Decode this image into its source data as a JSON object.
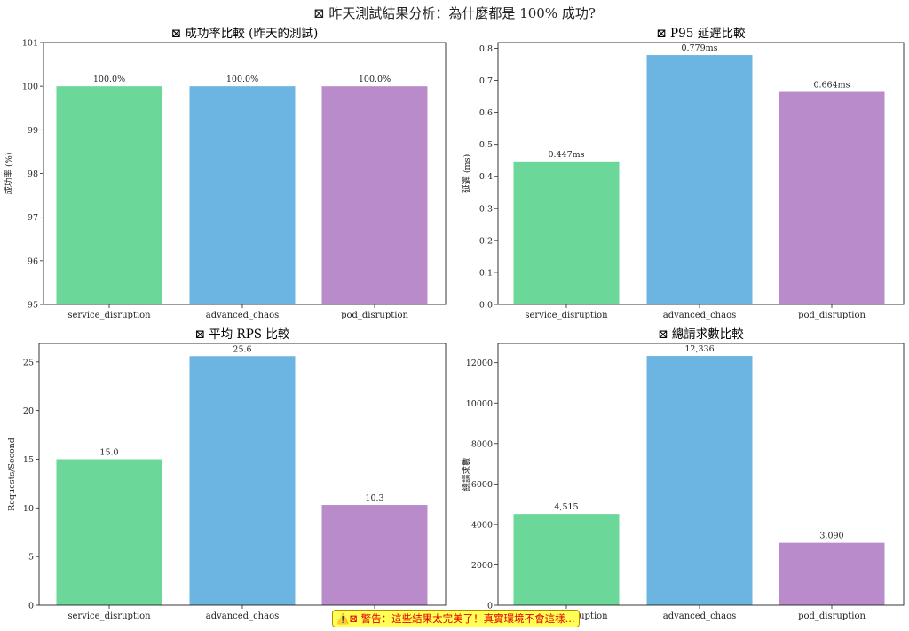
{
  "suptitle": "⊠ 昨天測試結果分析：為什麼都是 100% 成功?",
  "warning": "⚠️⊠ 警告：這些結果太完美了！真實環境不會這樣...",
  "colors": [
    "#6bd899",
    "#6cb4e2",
    "#b98bcb"
  ],
  "chart_data": [
    {
      "type": "bar",
      "title": "⊠ 成功率比較 (昨天的測試)",
      "categories": [
        "service_disruption",
        "advanced_chaos",
        "pod_disruption"
      ],
      "values": [
        100.0,
        100.0,
        100.0
      ],
      "value_labels": [
        "100.0%",
        "100.0%",
        "100.0%"
      ],
      "ylabel": "成功率 (%)",
      "xlabel": "",
      "ylim": [
        95,
        101
      ],
      "yticks": [
        95,
        96,
        97,
        98,
        99,
        100,
        101
      ],
      "ytick_labels": [
        "95",
        "96",
        "97",
        "98",
        "99",
        "100",
        "101"
      ],
      "grid": false
    },
    {
      "type": "bar",
      "title": "⊠ P95 延遲比較",
      "categories": [
        "service_disruption",
        "advanced_chaos",
        "pod_disruption"
      ],
      "values": [
        0.447,
        0.779,
        0.664
      ],
      "value_labels": [
        "0.447ms",
        "0.779ms",
        "0.664ms"
      ],
      "ylabel": "延遲 (ms)",
      "xlabel": "",
      "ylim": [
        0,
        0.818
      ],
      "yticks": [
        0,
        0.1,
        0.2,
        0.3,
        0.4,
        0.5,
        0.6,
        0.7,
        0.8
      ],
      "ytick_labels": [
        "0.0",
        "0.1",
        "0.2",
        "0.3",
        "0.4",
        "0.5",
        "0.6",
        "0.7",
        "0.8"
      ],
      "grid": false
    },
    {
      "type": "bar",
      "title": "⊠ 平均 RPS 比較",
      "categories": [
        "service_disruption",
        "advanced_chaos",
        "pod_disruption"
      ],
      "values": [
        15.0,
        25.6,
        10.3
      ],
      "value_labels": [
        "15.0",
        "25.6",
        "10.3"
      ],
      "ylabel": "Requests/Second",
      "xlabel": "",
      "ylim": [
        0,
        26.9
      ],
      "yticks": [
        0,
        5,
        10,
        15,
        20,
        25
      ],
      "ytick_labels": [
        "0",
        "5",
        "10",
        "15",
        "20",
        "25"
      ],
      "grid": false
    },
    {
      "type": "bar",
      "title": "⊠ 總請求數比較",
      "categories": [
        "service_disruption",
        "advanced_chaos",
        "pod_disruption"
      ],
      "values": [
        4515,
        12336,
        3090
      ],
      "value_labels": [
        "4,515",
        "12,336",
        "3,090"
      ],
      "ylabel": "總請求數",
      "xlabel": "",
      "ylim": [
        0,
        12953
      ],
      "yticks": [
        0,
        2000,
        4000,
        6000,
        8000,
        10000,
        12000
      ],
      "ytick_labels": [
        "0",
        "2000",
        "4000",
        "6000",
        "8000",
        "10000",
        "12000"
      ],
      "grid": false
    }
  ]
}
